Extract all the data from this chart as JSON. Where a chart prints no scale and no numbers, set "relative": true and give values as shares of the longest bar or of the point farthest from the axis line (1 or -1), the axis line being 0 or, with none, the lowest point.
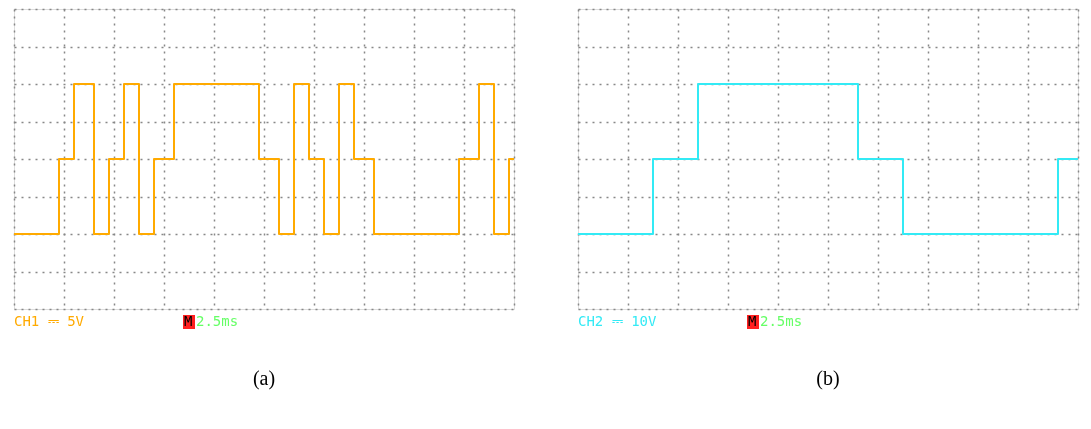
{
  "chart_data": [
    {
      "type": "step",
      "title": "(a)",
      "relative": true,
      "grid": true,
      "tick_labels": false,
      "line_style": "solid",
      "annotations": [
        "CH1 ⎓ 5V",
        "M",
        "2.5ms"
      ],
      "categories": [
        null,
        null,
        null,
        null,
        null,
        null,
        null,
        null,
        null,
        null,
        null,
        null,
        null,
        null,
        null,
        null,
        null,
        null,
        null,
        null,
        null,
        null,
        null,
        null,
        null,
        null,
        null,
        null,
        null,
        null,
        null,
        null,
        null,
        null,
        null,
        null,
        null,
        null,
        null,
        null,
        null,
        null,
        null,
        null,
        null,
        null,
        null,
        null,
        null,
        null,
        null,
        null,
        null,
        null,
        null,
        null,
        null,
        null,
        null,
        null,
        null,
        null,
        null,
        null,
        null,
        null,
        null,
        null,
        null,
        null,
        null,
        null,
        null,
        null,
        null,
        null,
        null,
        null,
        null,
        null,
        null,
        null,
        null,
        null,
        null,
        null,
        null,
        null,
        null,
        null,
        null,
        null,
        null,
        null,
        null,
        null,
        null,
        null,
        null,
        null,
        null
      ],
      "series": [
        {
          "color": "#ffaa00",
          "values": [
            0,
            0,
            0,
            0,
            0,
            0,
            0,
            0,
            0,
            0.5,
            0.5,
            0.5,
            1,
            1,
            1,
            1,
            0,
            0,
            0,
            0.5,
            0.5,
            0.5,
            1,
            1,
            1,
            0,
            0,
            0,
            0.5,
            0.5,
            0.5,
            0.5,
            1,
            1,
            1,
            1,
            1,
            1,
            1,
            1,
            1,
            1,
            1,
            1,
            1,
            1,
            1,
            1,
            1,
            0.5,
            0.5,
            0.5,
            0.5,
            0,
            0,
            0,
            1,
            1,
            1,
            0.5,
            0.5,
            0.5,
            0,
            0,
            0,
            1,
            1,
            1,
            0.5,
            0.5,
            0.5,
            0.5,
            0,
            0,
            0,
            0,
            0,
            0,
            0,
            0,
            0,
            0,
            0,
            0,
            0,
            0,
            0,
            0,
            0,
            0.5,
            0.5,
            0.5,
            0.5,
            1,
            1,
            1,
            0,
            0,
            0,
            0.5,
            0.5
          ]
        }
      ]
    },
    {
      "type": "step",
      "title": "(b)",
      "relative": true,
      "grid": true,
      "tick_labels": false,
      "line_style": "solid",
      "annotations": [
        "CH2 ⎓ 10V",
        "M",
        "2.5ms"
      ],
      "categories": [
        null,
        null,
        null,
        null,
        null,
        null,
        null,
        null,
        null,
        null,
        null,
        null,
        null,
        null,
        null,
        null,
        null,
        null,
        null,
        null,
        null,
        null,
        null,
        null,
        null,
        null,
        null,
        null,
        null,
        null,
        null,
        null,
        null,
        null,
        null,
        null,
        null,
        null,
        null,
        null,
        null,
        null,
        null,
        null,
        null,
        null,
        null,
        null,
        null,
        null,
        null,
        null,
        null,
        null,
        null,
        null,
        null,
        null,
        null,
        null,
        null,
        null,
        null,
        null,
        null,
        null,
        null,
        null,
        null,
        null,
        null,
        null,
        null,
        null,
        null,
        null,
        null,
        null,
        null,
        null,
        null,
        null,
        null,
        null,
        null,
        null,
        null,
        null,
        null,
        null,
        null,
        null,
        null,
        null,
        null,
        null,
        null,
        null,
        null,
        null,
        null
      ],
      "series": [
        {
          "color": "#33eaf5",
          "values": [
            0,
            0,
            0,
            0,
            0,
            0,
            0,
            0,
            0,
            0,
            0,
            0,
            0,
            0,
            0,
            0.5,
            0.5,
            0.5,
            0.5,
            0.5,
            0.5,
            0.5,
            0.5,
            0.5,
            1,
            1,
            1,
            1,
            1,
            1,
            1,
            1,
            1,
            1,
            1,
            1,
            1,
            1,
            1,
            1,
            1,
            1,
            1,
            1,
            1,
            1,
            1,
            1,
            1,
            1,
            1,
            1,
            1,
            1,
            1,
            1,
            0.5,
            0.5,
            0.5,
            0.5,
            0.5,
            0.5,
            0.5,
            0.5,
            0.5,
            0,
            0,
            0,
            0,
            0,
            0,
            0,
            0,
            0,
            0,
            0,
            0,
            0,
            0,
            0,
            0,
            0,
            0,
            0,
            0,
            0,
            0,
            0,
            0,
            0,
            0,
            0,
            0,
            0,
            0,
            0,
            0.5,
            0.5,
            0.5,
            0.5,
            0.5
          ]
        }
      ]
    }
  ]
}
